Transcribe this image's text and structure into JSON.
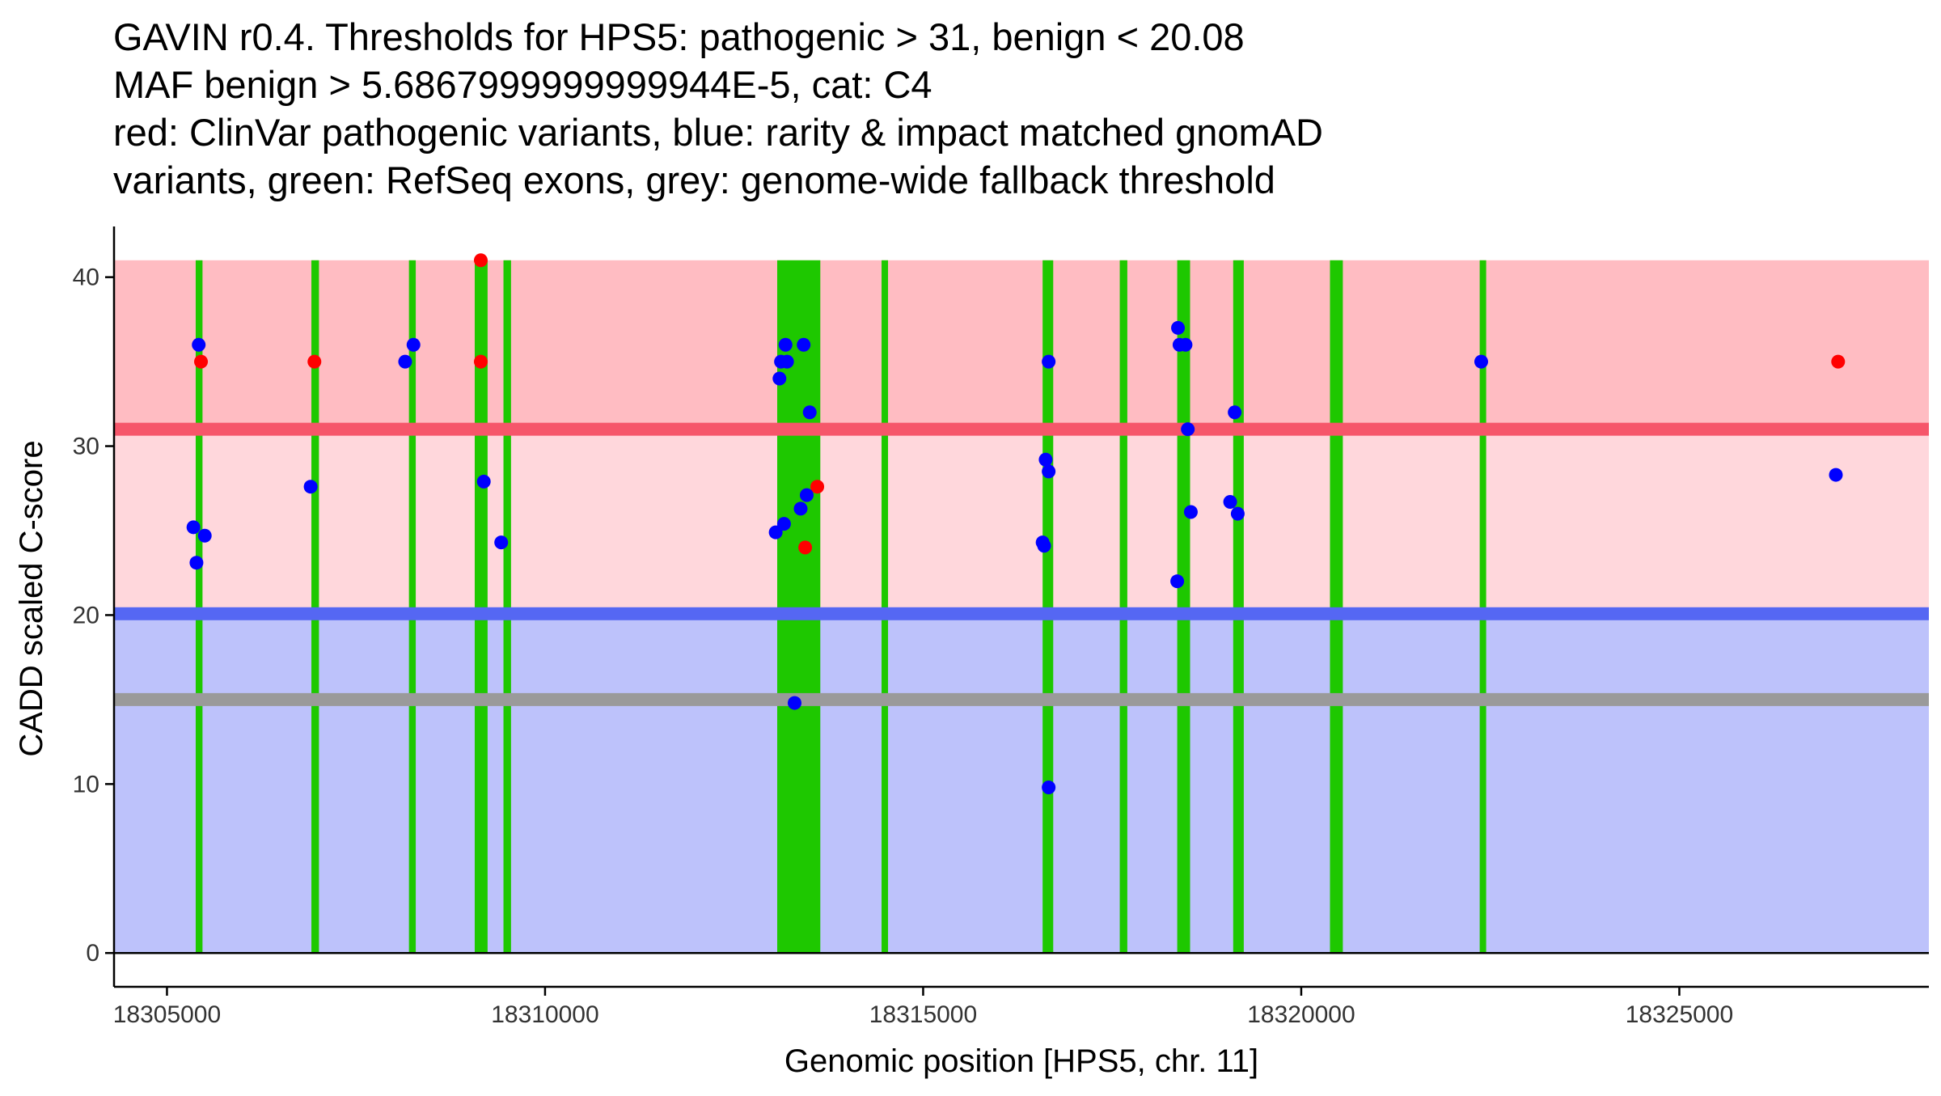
{
  "chart_data": {
    "type": "scatter",
    "title_lines": [
      "GAVIN r0.4. Thresholds for HPS5: pathogenic > 31, benign < 20.08",
      "MAF benign > 5.6867999999999944E-5, cat: C4",
      "red: ClinVar pathogenic variants, blue: rarity & impact matched gnomAD",
      "variants, green: RefSeq exons, grey: genome-wide fallback threshold"
    ],
    "xlabel": "Genomic position [HPS5, chr. 11]",
    "ylabel": "CADD scaled C-score",
    "xlim": [
      18304300,
      18328300
    ],
    "ylim": [
      -2,
      43
    ],
    "x_ticks": [
      18305000,
      18310000,
      18315000,
      18320000,
      18325000
    ],
    "x_tick_labels": [
      "18305000",
      "18310000",
      "18315000",
      "18320000",
      "18325000"
    ],
    "y_ticks": [
      0,
      10,
      20,
      30,
      40
    ],
    "y_tick_labels": [
      "0",
      "10",
      "20",
      "30",
      "40"
    ],
    "thresholds": {
      "pathogenic": 31,
      "benign": 20.08,
      "fallback": 15,
      "max_score": 41,
      "region_x": [
        18304300,
        18328300
      ]
    },
    "colors": {
      "pathogenic_zone": "#ffbcc2",
      "mid_zone": "#ffd7dc",
      "benign_zone": "#bdc2fb",
      "pathogenic_line": "#f6566a",
      "benign_line": "#5567f3",
      "fallback_line": "#9a9a9a",
      "exon": "#1ec800",
      "clinvar": "#ff0000",
      "gnomad": "#0000ff",
      "axis": "#000000"
    },
    "exons": [
      [
        18305380,
        18305470
      ],
      [
        18306910,
        18307010
      ],
      [
        18308200,
        18308290
      ],
      [
        18309070,
        18309240
      ],
      [
        18309450,
        18309550
      ],
      [
        18313070,
        18313640
      ],
      [
        18314450,
        18314530
      ],
      [
        18316580,
        18316720
      ],
      [
        18317600,
        18317700
      ],
      [
        18318360,
        18318530
      ],
      [
        18319100,
        18319240
      ],
      [
        18320380,
        18320550
      ],
      [
        18322360,
        18322440
      ]
    ],
    "series": [
      {
        "name": "ClinVar pathogenic variants",
        "color": "#ff0000",
        "points": [
          [
            18305450,
            35
          ],
          [
            18306950,
            35
          ],
          [
            18309150,
            41
          ],
          [
            18309150,
            35
          ],
          [
            18313440,
            24
          ],
          [
            18313600,
            27.6
          ],
          [
            18327100,
            35
          ]
        ]
      },
      {
        "name": "rarity & impact matched gnomAD variants",
        "color": "#0000ff",
        "points": [
          [
            18305420,
            36
          ],
          [
            18305350,
            25.2
          ],
          [
            18305500,
            24.7
          ],
          [
            18305390,
            23.1
          ],
          [
            18306900,
            27.6
          ],
          [
            18308150,
            35
          ],
          [
            18308260,
            36
          ],
          [
            18309190,
            27.9
          ],
          [
            18309420,
            24.3
          ],
          [
            18313050,
            24.9
          ],
          [
            18313120,
            35
          ],
          [
            18313200,
            35
          ],
          [
            18313180,
            36
          ],
          [
            18313100,
            34
          ],
          [
            18313160,
            25.4
          ],
          [
            18313420,
            36
          ],
          [
            18313500,
            32
          ],
          [
            18313460,
            27.1
          ],
          [
            18313380,
            26.3
          ],
          [
            18313300,
            14.8
          ],
          [
            18316620,
            29.2
          ],
          [
            18316660,
            28.5
          ],
          [
            18316660,
            35
          ],
          [
            18316580,
            24.3
          ],
          [
            18316600,
            24.1
          ],
          [
            18316660,
            9.8
          ],
          [
            18318370,
            37
          ],
          [
            18318390,
            36
          ],
          [
            18318470,
            36
          ],
          [
            18318500,
            31
          ],
          [
            18318360,
            22
          ],
          [
            18318540,
            26.1
          ],
          [
            18319120,
            32
          ],
          [
            18319060,
            26.7
          ],
          [
            18319160,
            26
          ],
          [
            18322380,
            35
          ],
          [
            18327070,
            28.3
          ]
        ]
      }
    ]
  }
}
